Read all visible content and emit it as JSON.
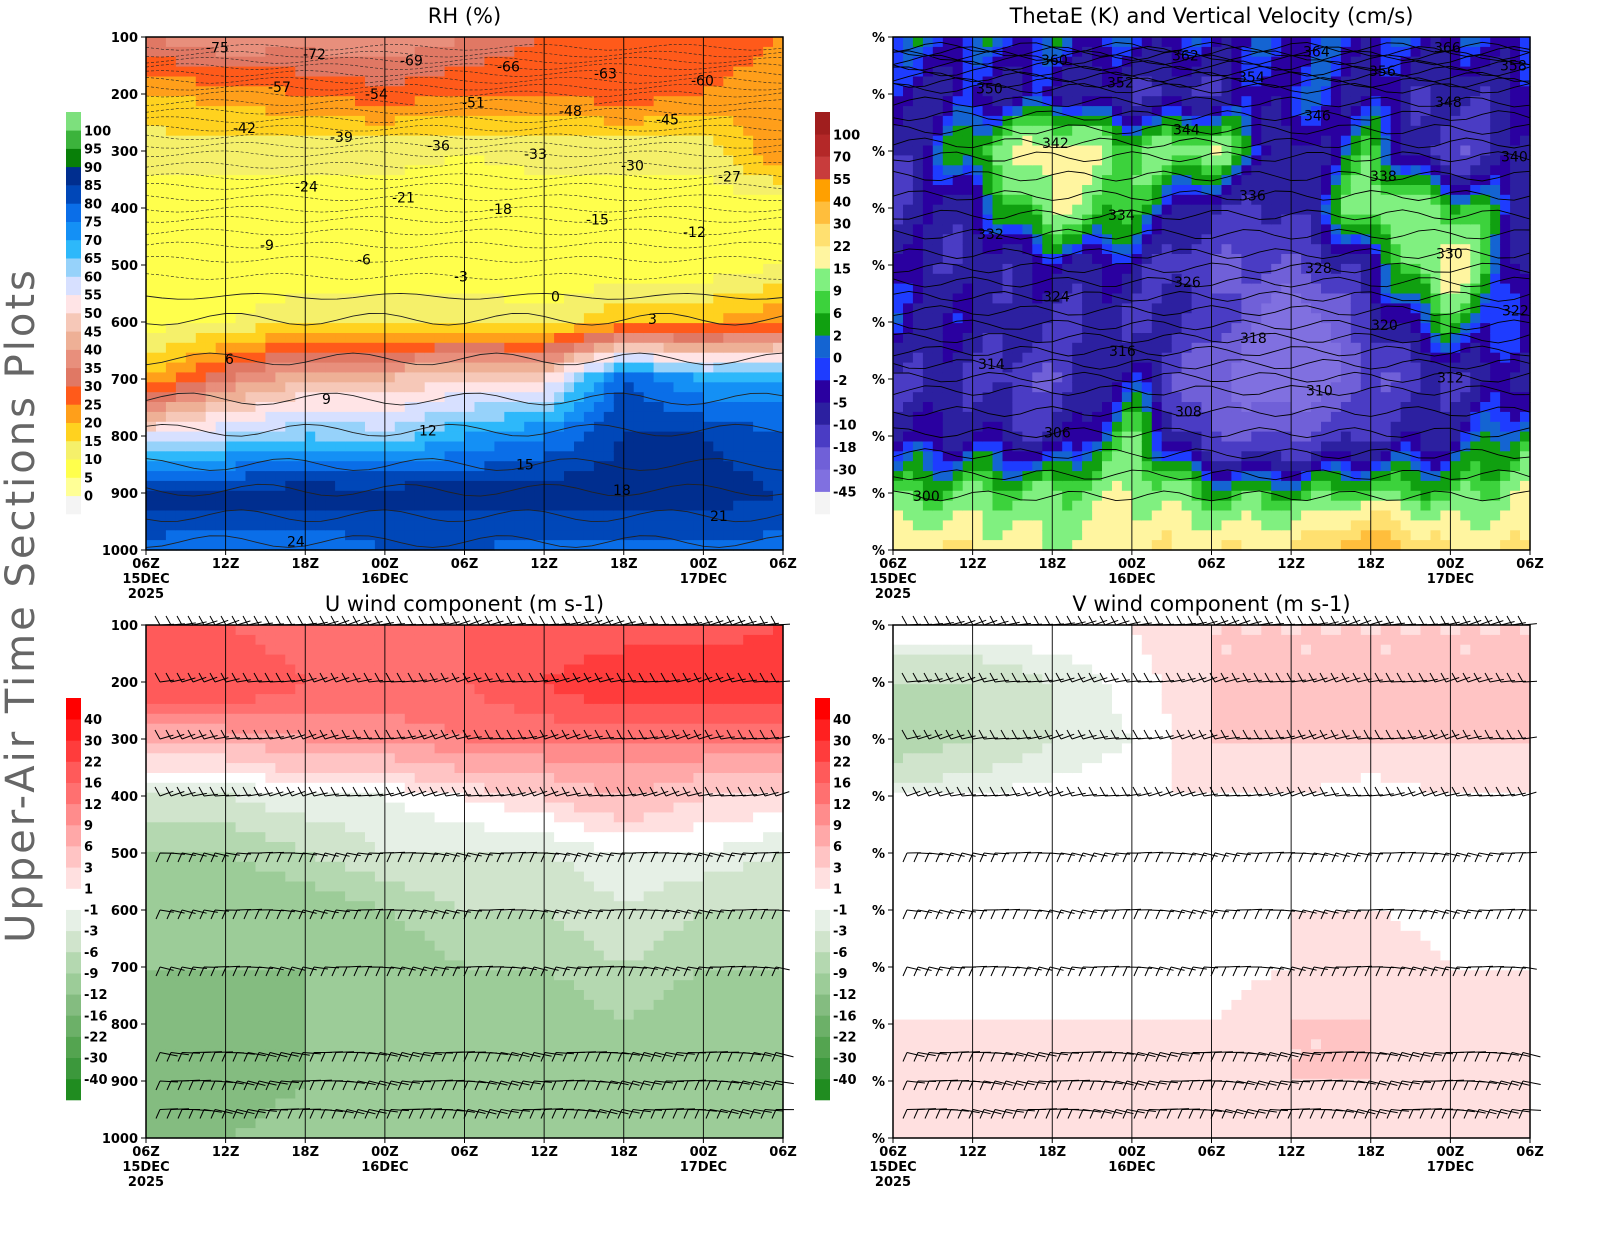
{
  "page_title": "Upper-Air Time Sections Plots",
  "chart_data": [
    {
      "type": "heatmap",
      "title": "RH (%)",
      "y_ticks": [
        "100",
        "200",
        "300",
        "400",
        "500",
        "600",
        "700",
        "800",
        "900",
        "1000"
      ],
      "x_ticks": [
        "06Z",
        "12Z",
        "18Z",
        "00Z",
        "06Z",
        "12Z",
        "18Z",
        "00Z",
        "06Z"
      ],
      "x_date_labels": {
        "0": "15DEC",
        "3": "16DEC",
        "7": "17DEC"
      },
      "x_year_label": "2025",
      "pressure_levels": [
        100,
        200,
        300,
        400,
        500,
        600,
        700,
        800,
        900,
        1000
      ],
      "colorbar_levels": [
        0,
        5,
        10,
        15,
        20,
        25,
        30,
        35,
        40,
        45,
        50,
        55,
        60,
        65,
        70,
        75,
        80,
        85,
        90,
        95,
        100
      ],
      "colorbar_colors": [
        "#f4f4f4",
        "#ffff96",
        "#ffff4c",
        "#f5f06a",
        "#ffd21f",
        "#ff9f1a",
        "#ff5a1a",
        "#e07864",
        "#e88f7c",
        "#eeb096",
        "#f6c8b8",
        "#ffe4e6",
        "#d7e0ff",
        "#96d2fa",
        "#2db8fa",
        "#1490f5",
        "#0a6ee8",
        "#0047b8",
        "#002e8f",
        "#087f08",
        "#3cb33c",
        "#7de07d"
      ],
      "values_by_time": [
        [
          35,
          20,
          12,
          8,
          5,
          8,
          20,
          55,
          88,
          78
        ],
        [
          40,
          22,
          12,
          8,
          5,
          10,
          35,
          60,
          88,
          75
        ],
        [
          38,
          25,
          12,
          7,
          5,
          15,
          45,
          65,
          88,
          75
        ],
        [
          40,
          28,
          12,
          7,
          5,
          15,
          45,
          62,
          88,
          80
        ],
        [
          35,
          25,
          10,
          7,
          5,
          15,
          50,
          70,
          88,
          80
        ],
        [
          30,
          25,
          12,
          7,
          5,
          12,
          50,
          75,
          88,
          78
        ],
        [
          30,
          28,
          12,
          7,
          5,
          20,
          80,
          85,
          88,
          78
        ],
        [
          30,
          25,
          12,
          7,
          6,
          20,
          70,
          85,
          88,
          78
        ],
        [
          25,
          20,
          25,
          7,
          10,
          25,
          70,
          80,
          85,
          78
        ]
      ],
      "contour_labels": [
        -75,
        -72,
        -69,
        -66,
        -63,
        -60,
        -57,
        -54,
        -51,
        -48,
        -45,
        -42,
        -39,
        -36,
        -33,
        -30,
        -27,
        -24,
        -21,
        -18,
        -15,
        -12,
        -9,
        -6,
        -3,
        0,
        3,
        6,
        9,
        12,
        15,
        18,
        21,
        24
      ]
    },
    {
      "type": "heatmap",
      "title": "ThetaE (K) and Vertical Velocity (cm/s)",
      "y_ticks": [
        "%",
        "%",
        "%",
        "%",
        "%",
        "%",
        "%",
        "%",
        "%",
        "%"
      ],
      "x_ticks": [
        "06Z",
        "12Z",
        "18Z",
        "00Z",
        "06Z",
        "12Z",
        "18Z",
        "00Z",
        "06Z"
      ],
      "x_date_labels": {
        "0": "15DEC",
        "3": "16DEC",
        "7": "17DEC"
      },
      "x_year_label": "2025",
      "colorbar_levels": [
        -45,
        -30,
        -18,
        -10,
        -5,
        -2,
        0,
        2,
        6,
        9,
        15,
        22,
        30,
        40,
        55,
        70,
        100
      ],
      "colorbar_colors": [
        "#f4f4f4",
        "#8070e0",
        "#7060d8",
        "#4a3cc4",
        "#2c20a0",
        "#2a00a0",
        "#1e3cff",
        "#1464d2",
        "#10a010",
        "#3cd23c",
        "#80f080",
        "#fff5a0",
        "#ffe070",
        "#ffbe3c",
        "#ffa000",
        "#c83c3c",
        "#b42828",
        "#a01e1e"
      ],
      "values_by_time": [
        [
          0,
          -5,
          -10,
          -10,
          -5,
          -2,
          -10,
          -5,
          6,
          22
        ],
        [
          0,
          -5,
          6,
          -5,
          -10,
          -5,
          -10,
          -5,
          9,
          22
        ],
        [
          0,
          -5,
          22,
          15,
          -5,
          -10,
          -18,
          -10,
          9,
          15
        ],
        [
          -2,
          -10,
          9,
          6,
          -5,
          -10,
          0,
          9,
          15,
          22
        ],
        [
          -2,
          -10,
          15,
          -10,
          -18,
          -10,
          -30,
          -18,
          6,
          22
        ],
        [
          -2,
          0,
          -10,
          -10,
          -18,
          -45,
          -45,
          -18,
          6,
          22
        ],
        [
          -2,
          -5,
          6,
          15,
          -5,
          -10,
          -18,
          -10,
          9,
          40
        ],
        [
          -2,
          -10,
          -18,
          9,
          22,
          6,
          -10,
          -5,
          6,
          22
        ],
        [
          0,
          -5,
          -5,
          -5,
          -10,
          -5,
          -5,
          6,
          15,
          22
        ]
      ],
      "contour_labels": [
        300,
        306,
        308,
        310,
        312,
        314,
        316,
        318,
        320,
        322,
        324,
        326,
        328,
        330,
        332,
        334,
        336,
        338,
        340,
        342,
        344,
        346,
        348,
        350,
        352,
        354,
        356,
        358,
        360,
        362,
        364,
        366
      ]
    },
    {
      "type": "heatmap",
      "title": "U wind component (m s-1)",
      "y_ticks": [
        "100",
        "200",
        "300",
        "400",
        "500",
        "600",
        "700",
        "800",
        "900",
        "1000"
      ],
      "x_ticks": [
        "06Z",
        "12Z",
        "18Z",
        "00Z",
        "06Z",
        "12Z",
        "18Z",
        "00Z",
        "06Z"
      ],
      "x_date_labels": {
        "0": "15DEC",
        "3": "16DEC",
        "7": "17DEC"
      },
      "x_year_label": "2025",
      "colorbar_levels": [
        -40,
        -30,
        -22,
        -16,
        -12,
        -9,
        -6,
        -3,
        -1,
        1,
        3,
        6,
        9,
        12,
        16,
        22,
        30,
        40
      ],
      "colorbar_colors": [
        "#208c20",
        "#3c983c",
        "#54a450",
        "#6cb068",
        "#84bc80",
        "#9ccc98",
        "#b4d8b0",
        "#d0e4cc",
        "#e6f0e6",
        "#ffffff",
        "#ffe0e0",
        "#ffc4c4",
        "#ffa8a8",
        "#ff8c8c",
        "#ff7070",
        "#ff5a5a",
        "#ff3c3c",
        "#ff2020",
        "#ff0000"
      ],
      "values_by_time": [
        [
          16,
          22,
          6,
          -3,
          -9,
          -12,
          -12,
          -16,
          -16,
          -12
        ],
        [
          16,
          22,
          6,
          -3,
          -9,
          -12,
          -12,
          -16,
          -16,
          -12
        ],
        [
          12,
          16,
          9,
          -1,
          -6,
          -12,
          -12,
          -12,
          -12,
          -9
        ],
        [
          12,
          16,
          9,
          -1,
          -3,
          -9,
          -12,
          -12,
          -12,
          -9
        ],
        [
          16,
          16,
          12,
          1,
          -3,
          -6,
          -9,
          -9,
          -12,
          -9
        ],
        [
          16,
          22,
          12,
          3,
          -3,
          -6,
          -9,
          -12,
          -12,
          -9
        ],
        [
          16,
          30,
          12,
          6,
          -1,
          -3,
          -6,
          -9,
          -12,
          -9
        ],
        [
          16,
          30,
          12,
          3,
          -1,
          -6,
          -9,
          -12,
          -12,
          -9
        ],
        [
          22,
          30,
          12,
          3,
          -3,
          -6,
          -9,
          -9,
          -12,
          -9
        ]
      ],
      "wind_barbs": true
    },
    {
      "type": "heatmap",
      "title": "V wind component (m s-1)",
      "y_ticks": [
        "%",
        "%",
        "%",
        "%",
        "%",
        "%",
        "%",
        "%",
        "%",
        "%"
      ],
      "x_ticks": [
        "06Z",
        "12Z",
        "18Z",
        "00Z",
        "06Z",
        "12Z",
        "18Z",
        "00Z",
        "06Z"
      ],
      "x_date_labels": {
        "0": "15DEC",
        "3": "16DEC",
        "7": "17DEC"
      },
      "x_year_label": "2025",
      "colorbar_levels": [
        -40,
        -30,
        -22,
        -16,
        -12,
        -9,
        -6,
        -3,
        -1,
        1,
        3,
        6,
        9,
        12,
        16,
        22,
        30,
        40
      ],
      "colorbar_colors": [
        "#208c20",
        "#3c983c",
        "#54a450",
        "#6cb068",
        "#84bc80",
        "#9ccc98",
        "#b4d8b0",
        "#d0e4cc",
        "#e6f0e6",
        "#ffffff",
        "#ffe0e0",
        "#ffc4c4",
        "#ffa8a8",
        "#ff8c8c",
        "#ff7070",
        "#ff5a5a",
        "#ff3c3c",
        "#ff2020",
        "#ff0000"
      ],
      "values_by_time": [
        [
          1,
          -6,
          -9,
          -1,
          0,
          1,
          0,
          1,
          3,
          1
        ],
        [
          1,
          -6,
          -6,
          -1,
          0,
          1,
          0,
          1,
          3,
          1
        ],
        [
          1,
          -3,
          -3,
          0,
          0,
          1,
          0,
          1,
          3,
          1
        ],
        [
          1,
          0,
          -1,
          1,
          0,
          0,
          0,
          1,
          1,
          1
        ],
        [
          3,
          3,
          3,
          1,
          0,
          0,
          0,
          1,
          1,
          1
        ],
        [
          3,
          3,
          3,
          1,
          -1,
          1,
          1,
          3,
          3,
          1
        ],
        [
          3,
          3,
          3,
          0,
          0,
          1,
          3,
          3,
          3,
          1
        ],
        [
          3,
          3,
          3,
          1,
          0,
          0,
          1,
          1,
          1,
          1
        ],
        [
          3,
          3,
          3,
          1,
          0,
          0,
          1,
          1,
          1,
          1
        ]
      ],
      "wind_barbs": true
    }
  ]
}
